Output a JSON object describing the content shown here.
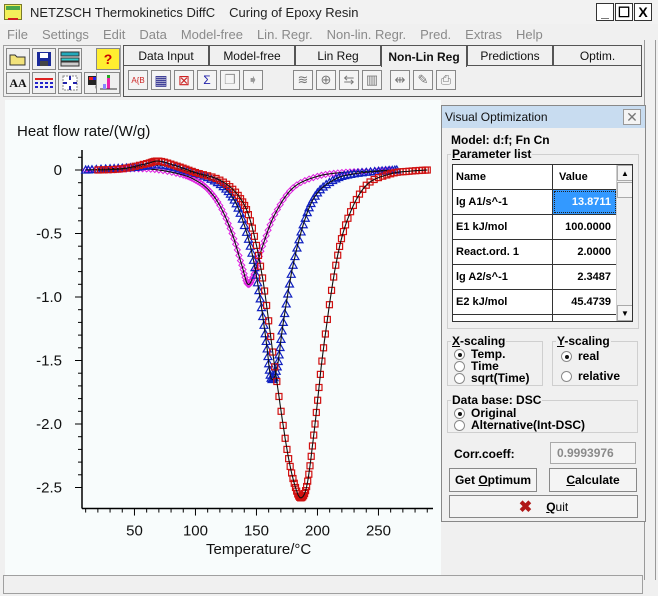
{
  "window": {
    "app_title": "NETZSCH Thermokinetics DiffC",
    "doc_title": "Curing of Epoxy Resin",
    "minimize": "_",
    "maximize": "☐",
    "close": "X"
  },
  "menu": [
    "File",
    "Settings",
    "Edit",
    "Data",
    "Model-free",
    "Lin. Regr.",
    "Non-lin. Regr.",
    "Pred.",
    "Extras",
    "Help"
  ],
  "toolbar_left": [
    {
      "icon": "open-folder-icon"
    },
    {
      "icon": "save-disk-icon"
    },
    {
      "icon": "settings-device-icon"
    },
    {
      "icon": "help-icon",
      "glyph": "?"
    },
    {
      "icon": "font-icon",
      "glyph": "AA"
    },
    {
      "icon": "line-style-icon"
    },
    {
      "icon": "zoom-fit-icon"
    },
    {
      "icon": "color-palette-icon"
    },
    {
      "icon": "peak-icon"
    }
  ],
  "tabs": [
    {
      "label": "Data Input",
      "active": false
    },
    {
      "label": "Model-free",
      "active": false
    },
    {
      "label": "Lin Reg",
      "active": false
    },
    {
      "label": "Non-Lin Reg",
      "active": true
    },
    {
      "label": "Predictions",
      "active": false
    },
    {
      "label": "Optim.",
      "active": false
    }
  ],
  "tab_toolbar": [
    {
      "icon": "model-abc-icon",
      "glyph": "A{B"
    },
    {
      "icon": "table-icon",
      "glyph": "▦"
    },
    {
      "icon": "chart-search-icon",
      "glyph": "⊠"
    },
    {
      "icon": "chart-sigma-icon",
      "glyph": "Σ"
    },
    {
      "icon": "copy-icon",
      "glyph": "❐"
    },
    {
      "icon": "export-arrow-icon",
      "glyph": "➧"
    },
    {
      "icon": "plot-icon",
      "glyph": "≋"
    },
    {
      "icon": "zoom-icon",
      "glyph": "⊕"
    },
    {
      "icon": "scale-icon",
      "glyph": "⇆"
    },
    {
      "icon": "film-icon",
      "glyph": "▥"
    },
    {
      "icon": "compare-icon",
      "glyph": "⇹"
    },
    {
      "icon": "brush-icon",
      "glyph": "✎"
    },
    {
      "icon": "print-icon",
      "glyph": "⎙"
    }
  ],
  "dialog": {
    "title": "Visual Optimization",
    "model_label": "Model: d:f; Fn Cn",
    "param_legend_u": "P",
    "param_legend_rest": "arameter list",
    "grid": {
      "headers": {
        "name": "Name",
        "value": "Value"
      },
      "rows": [
        {
          "name": "lg  A1/s^-1",
          "value": "13.8711",
          "selected": true
        },
        {
          "name": "E1   kJ/mol",
          "value": "100.0000"
        },
        {
          "name": "React.ord. 1",
          "value": "2.0000"
        },
        {
          "name": "lg  A2/s^-1",
          "value": "2.3487"
        },
        {
          "name": "E2   kJ/mol",
          "value": "45.4739"
        }
      ]
    },
    "x_scaling": {
      "legend_u": "X",
      "legend_rest": "-scaling",
      "options": [
        "Temp.",
        "Time",
        "sqrt(Time)"
      ],
      "selected": 0
    },
    "y_scaling": {
      "legend_u": "Y",
      "legend_rest": "-scaling",
      "options": [
        "real",
        "relative"
      ],
      "selected": 0
    },
    "database": {
      "legend": "Data base: DSC",
      "options": [
        "Original",
        "Alternative(Int-DSC)"
      ],
      "selected": 0
    },
    "corr_label": "Corr.coeff:",
    "corr_value": "0.9993976",
    "get_optimum_pre": "Get ",
    "get_optimum_u": "O",
    "get_optimum_post": "ptimum",
    "calculate_u": "C",
    "calculate_post": "alculate",
    "quit_u": "Q",
    "quit_post": "uit"
  },
  "chart_data": {
    "type": "line",
    "title": "",
    "ylabel": "Heat flow rate/(W/g)",
    "xlabel": "Temperature/°C",
    "xlim": [
      7,
      295
    ],
    "ylim": [
      -2.65,
      0.05
    ],
    "xticks": [
      50,
      100,
      150,
      200,
      250
    ],
    "yticks": [
      0,
      -0.5,
      -1.0,
      -1.5,
      -2.0,
      -2.5
    ],
    "ytick_labels": [
      "0",
      "-0.5",
      "-1.0",
      "-1.5",
      "-2.0",
      "-2.5"
    ],
    "grid": false,
    "series": [
      {
        "name": "magenta (slowest rate)",
        "marker": "diamond",
        "color": "#e020e0",
        "x": [
          10,
          30,
          50,
          70,
          90,
          100,
          110,
          120,
          130,
          138,
          143,
          148,
          155,
          165,
          180,
          200,
          220,
          240,
          260
        ],
        "y": [
          0,
          0.0,
          0.01,
          0.0,
          -0.04,
          -0.08,
          -0.15,
          -0.28,
          -0.5,
          -0.75,
          -0.9,
          -0.82,
          -0.6,
          -0.35,
          -0.14,
          -0.05,
          -0.02,
          -0.01,
          0
        ]
      },
      {
        "name": "blue (medium rate)",
        "marker": "triangle",
        "color": "#1020c0",
        "x": [
          10,
          30,
          50,
          70,
          90,
          110,
          125,
          135,
          145,
          152,
          158,
          162,
          167,
          172,
          180,
          190,
          200,
          215,
          230,
          250,
          265
        ],
        "y": [
          0,
          0.01,
          0.02,
          0.04,
          0.0,
          -0.06,
          -0.15,
          -0.3,
          -0.6,
          -0.95,
          -1.35,
          -1.64,
          -1.55,
          -1.2,
          -0.75,
          -0.38,
          -0.18,
          -0.07,
          -0.03,
          -0.01,
          0
        ]
      },
      {
        "name": "red (fastest rate)",
        "marker": "square",
        "color": "#d01010",
        "x": [
          20,
          40,
          60,
          70,
          85,
          100,
          120,
          135,
          145,
          155,
          165,
          175,
          182,
          187,
          192,
          198,
          205,
          215,
          225,
          240,
          260,
          275,
          290
        ],
        "y": [
          0,
          0.01,
          0.05,
          0.07,
          0.03,
          -0.02,
          -0.08,
          -0.2,
          -0.4,
          -0.85,
          -1.55,
          -2.2,
          -2.5,
          -2.58,
          -2.45,
          -2.0,
          -1.4,
          -0.75,
          -0.38,
          -0.12,
          -0.03,
          -0.01,
          0
        ]
      }
    ]
  }
}
